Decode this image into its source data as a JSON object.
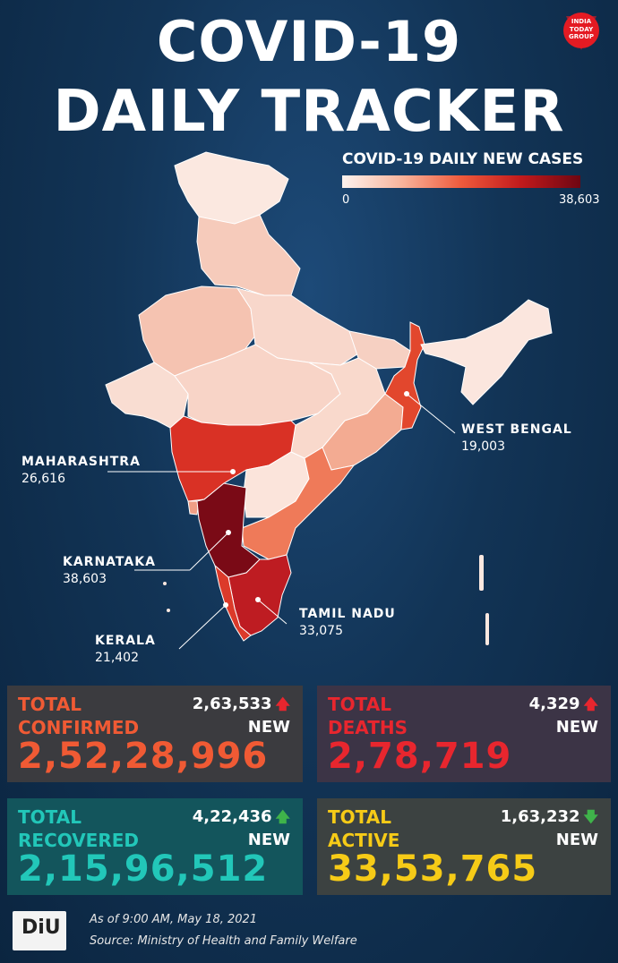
{
  "title": {
    "line1": "COVID-19",
    "line2": "DAILY TRACKER"
  },
  "logo": {
    "brand_top": "INDIA",
    "brand_mid": "TODAY",
    "brand_bot": "GROUP"
  },
  "legend": {
    "title": "COVID-19 DAILY NEW CASES",
    "min": "0",
    "max": "38,603"
  },
  "colors": {
    "scale_low": "#fdf2ee",
    "scale_high": "#6e0612",
    "confirmed": "#f05a34",
    "deaths": "#e8262e",
    "recovered": "#22c7b9",
    "active": "#f6cb17"
  },
  "states": {
    "maharashtra": {
      "name": "MAHARASHTRA",
      "value": "26,616"
    },
    "karnataka": {
      "name": "KARNATAKA",
      "value": "38,603"
    },
    "kerala": {
      "name": "KERALA",
      "value": "21,402"
    },
    "tamil_nadu": {
      "name": "TAMIL NADU",
      "value": "33,075"
    },
    "west_bengal": {
      "name": "WEST BENGAL",
      "value": "19,003"
    }
  },
  "cards": {
    "confirmed": {
      "label1": "TOTAL",
      "label2": "CONFIRMED",
      "new_value": "2,63,533",
      "new_label": "NEW",
      "total": "2,52,28,996",
      "trend": "up-arrow-icon"
    },
    "deaths": {
      "label1": "TOTAL",
      "label2": "DEATHS",
      "new_value": "4,329",
      "new_label": "NEW",
      "total": "2,78,719",
      "trend": "up-arrow-icon"
    },
    "recovered": {
      "label1": "TOTAL",
      "label2": "RECOVERED",
      "new_value": "4,22,436",
      "new_label": "NEW",
      "total": "2,15,96,512",
      "trend": "up-arrow-icon"
    },
    "active": {
      "label1": "TOTAL",
      "label2": "ACTIVE",
      "new_value": "1,63,232",
      "new_label": "NEW",
      "total": "33,53,765",
      "trend": "down-arrow-icon"
    }
  },
  "footer": {
    "logo_text": "DiU",
    "as_of": "As of 9:00 AM, May 18, 2021",
    "source": "Source: Ministry of Health and Family Welfare"
  }
}
